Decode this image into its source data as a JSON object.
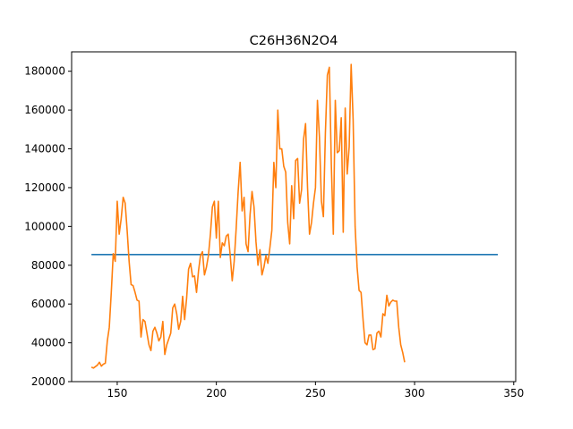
{
  "chart_data": {
    "type": "line",
    "title": "C26H36N2O4",
    "xlabel": "",
    "ylabel": "",
    "xlim": [
      127,
      351
    ],
    "ylim": [
      20000,
      190000
    ],
    "x_ticks": [
      150,
      200,
      250,
      300,
      350
    ],
    "y_ticks": [
      20000,
      40000,
      60000,
      80000,
      100000,
      120000,
      140000,
      160000,
      180000
    ],
    "grid": false,
    "series": [
      {
        "color": "#1f77b4",
        "points": [
          [
            137,
            85500
          ],
          [
            342,
            85500
          ]
        ]
      },
      {
        "color": "#ff7f0e",
        "points": [
          [
            137,
            27500
          ],
          [
            138,
            27000
          ],
          [
            140,
            28500
          ],
          [
            141,
            30000
          ],
          [
            142,
            28000
          ],
          [
            143,
            29000
          ],
          [
            144,
            29500
          ],
          [
            145,
            41000
          ],
          [
            146,
            48000
          ],
          [
            147,
            66000
          ],
          [
            148,
            86000
          ],
          [
            149,
            82000
          ],
          [
            150,
            113000
          ],
          [
            151,
            96000
          ],
          [
            152,
            104000
          ],
          [
            153,
            115000
          ],
          [
            154,
            112000
          ],
          [
            155,
            98000
          ],
          [
            156,
            82000
          ],
          [
            157,
            70000
          ],
          [
            158,
            69500
          ],
          [
            159,
            66000
          ],
          [
            160,
            62000
          ],
          [
            161,
            61500
          ],
          [
            162,
            43000
          ],
          [
            163,
            52000
          ],
          [
            164,
            51000
          ],
          [
            165,
            45000
          ],
          [
            166,
            39000
          ],
          [
            167,
            36000
          ],
          [
            168,
            46000
          ],
          [
            169,
            48000
          ],
          [
            170,
            45000
          ],
          [
            171,
            41000
          ],
          [
            172,
            43000
          ],
          [
            173,
            51000
          ],
          [
            174,
            34000
          ],
          [
            175,
            39000
          ],
          [
            176,
            42000
          ],
          [
            177,
            45000
          ],
          [
            178,
            58000
          ],
          [
            179,
            60000
          ],
          [
            180,
            55000
          ],
          [
            181,
            47000
          ],
          [
            182,
            51000
          ],
          [
            183,
            64000
          ],
          [
            184,
            52000
          ],
          [
            185,
            63000
          ],
          [
            186,
            78000
          ],
          [
            187,
            81000
          ],
          [
            188,
            74000
          ],
          [
            189,
            74500
          ],
          [
            190,
            66000
          ],
          [
            191,
            77000
          ],
          [
            192,
            85000
          ],
          [
            193,
            87000
          ],
          [
            194,
            75000
          ],
          [
            195,
            79000
          ],
          [
            196,
            85000
          ],
          [
            197,
            96000
          ],
          [
            198,
            110000
          ],
          [
            199,
            113000
          ],
          [
            200,
            94000
          ],
          [
            201,
            113000
          ],
          [
            202,
            84000
          ],
          [
            203,
            91500
          ],
          [
            204,
            90000
          ],
          [
            205,
            95000
          ],
          [
            206,
            96000
          ],
          [
            207,
            85000
          ],
          [
            208,
            72000
          ],
          [
            209,
            82000
          ],
          [
            210,
            99000
          ],
          [
            211,
            118000
          ],
          [
            212,
            133000
          ],
          [
            213,
            108000
          ],
          [
            214,
            115000
          ],
          [
            215,
            91000
          ],
          [
            216,
            87000
          ],
          [
            217,
            106000
          ],
          [
            218,
            118000
          ],
          [
            219,
            110000
          ],
          [
            220,
            92000
          ],
          [
            221,
            80000
          ],
          [
            222,
            88000
          ],
          [
            223,
            75000
          ],
          [
            224,
            79000
          ],
          [
            225,
            85000
          ],
          [
            226,
            81000
          ],
          [
            227,
            89000
          ],
          [
            228,
            98000
          ],
          [
            229,
            133000
          ],
          [
            230,
            120000
          ],
          [
            231,
            160000
          ],
          [
            232,
            140000
          ],
          [
            233,
            140000
          ],
          [
            234,
            131000
          ],
          [
            235,
            128000
          ],
          [
            236,
            102000
          ],
          [
            237,
            91000
          ],
          [
            238,
            121000
          ],
          [
            239,
            104000
          ],
          [
            240,
            134000
          ],
          [
            241,
            135000
          ],
          [
            242,
            112000
          ],
          [
            243,
            119000
          ],
          [
            244,
            145000
          ],
          [
            245,
            153000
          ],
          [
            246,
            120000
          ],
          [
            247,
            96000
          ],
          [
            248,
            102000
          ],
          [
            249,
            112000
          ],
          [
            250,
            120000
          ],
          [
            251,
            165000
          ],
          [
            252,
            146000
          ],
          [
            253,
            113000
          ],
          [
            254,
            105000
          ],
          [
            255,
            148000
          ],
          [
            256,
            178000
          ],
          [
            257,
            182000
          ],
          [
            258,
            132000
          ],
          [
            259,
            96000
          ],
          [
            260,
            165000
          ],
          [
            261,
            138000
          ],
          [
            262,
            139000
          ],
          [
            263,
            156000
          ],
          [
            264,
            97000
          ],
          [
            265,
            161000
          ],
          [
            266,
            127000
          ],
          [
            267,
            141000
          ],
          [
            268,
            183500
          ],
          [
            269,
            155000
          ],
          [
            270,
            100000
          ],
          [
            271,
            79000
          ],
          [
            272,
            67000
          ],
          [
            273,
            66000
          ],
          [
            274,
            52000
          ],
          [
            275,
            40000
          ],
          [
            276,
            39000
          ],
          [
            277,
            44000
          ],
          [
            278,
            44000
          ],
          [
            279,
            36500
          ],
          [
            280,
            37000
          ],
          [
            281,
            45000
          ],
          [
            282,
            46000
          ],
          [
            283,
            43000
          ],
          [
            284,
            55000
          ],
          [
            285,
            54000
          ],
          [
            286,
            64500
          ],
          [
            287,
            59000
          ],
          [
            288,
            61000
          ],
          [
            289,
            62000
          ],
          [
            290,
            61500
          ],
          [
            291,
            61500
          ],
          [
            292,
            48000
          ],
          [
            293,
            39000
          ],
          [
            294,
            35000
          ],
          [
            295,
            30000
          ]
        ]
      }
    ]
  }
}
